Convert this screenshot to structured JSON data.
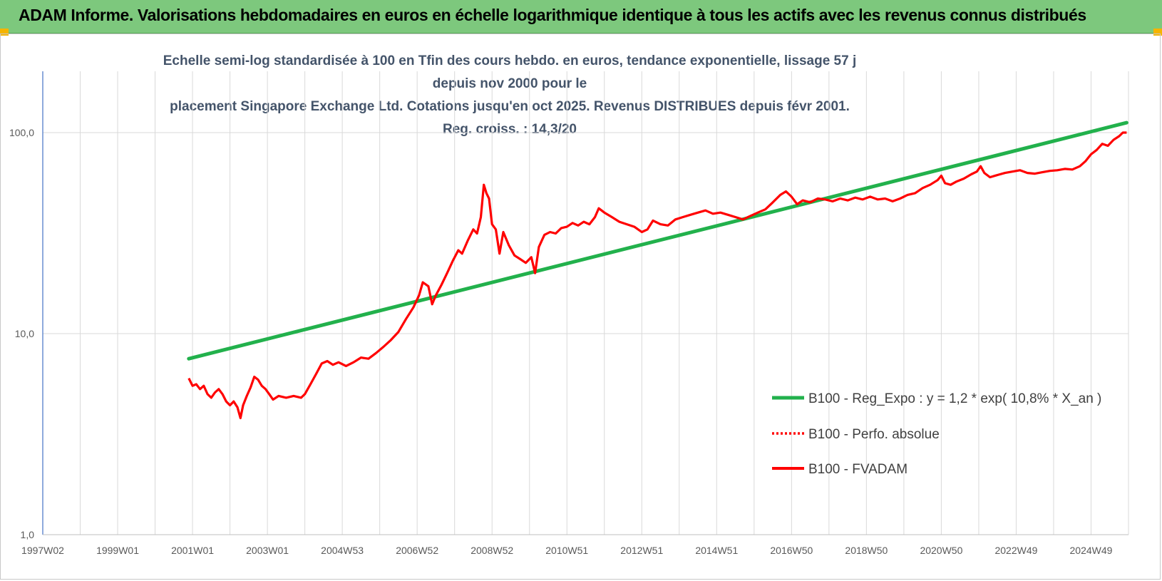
{
  "banner": {
    "title": "ADAM Informe. Valorisations hebdomadaires en euros en échelle logarithmique identique à tous les actifs avec les revenus connus distribués"
  },
  "colors": {
    "banner_bg": "#7dc87d",
    "trend": "#22b14c",
    "fvadam": "#ff0000",
    "perfo": "#ff0000",
    "grid": "#d9d9d9",
    "axis": "#4472c4",
    "title": "#44546a"
  },
  "chart_data": {
    "type": "line",
    "title_line1": "Echelle semi-log standardisée à 100 en Tfin des cours hebdo. en euros, tendance exponentielle, lissage 57 j depuis nov 2000 pour le",
    "title_line2": "placement Singapore Exchange Ltd. Cotations jusqu'en oct 2025.  Revenus DISTRIBUES depuis févr 2001. Reg. croiss. : 14,3/20",
    "yscale": "log",
    "ylim": [
      1,
      200
    ],
    "xlim": [
      1997.0,
      2026.0
    ],
    "y_ticks": [
      {
        "value": 1,
        "label": "1,0"
      },
      {
        "value": 10,
        "label": "10,0"
      },
      {
        "value": 100,
        "label": "100,0"
      }
    ],
    "x_ticks": [
      {
        "x": 1997.0,
        "label": "1997W02"
      },
      {
        "x": 1999.0,
        "label": "1999W01"
      },
      {
        "x": 2001.0,
        "label": "2001W01"
      },
      {
        "x": 2003.0,
        "label": "2003W01"
      },
      {
        "x": 2005.0,
        "label": "2004W53"
      },
      {
        "x": 2007.0,
        "label": "2006W52"
      },
      {
        "x": 2009.0,
        "label": "2008W52"
      },
      {
        "x": 2011.0,
        "label": "2010W51"
      },
      {
        "x": 2013.0,
        "label": "2012W51"
      },
      {
        "x": 2015.0,
        "label": "2014W51"
      },
      {
        "x": 2017.0,
        "label": "2016W50"
      },
      {
        "x": 2019.0,
        "label": "2018W50"
      },
      {
        "x": 2021.0,
        "label": "2020W50"
      },
      {
        "x": 2023.0,
        "label": "2022W49"
      },
      {
        "x": 2025.0,
        "label": "2024W49"
      }
    ],
    "grid": "vertical",
    "legend_position": "right-middle",
    "legend": [
      {
        "name": "B100 - Reg_Expo : y = 1,2 * exp( 10,8% *  X_an )",
        "style": "solid-green"
      },
      {
        "name": "B100 - Perfo. absolue",
        "style": "dotted-red"
      },
      {
        "name": "B100 - FVADAM",
        "style": "solid-red"
      }
    ],
    "series": [
      {
        "name": "B100 - Reg_Expo : y = 1,2 * exp( 10,8% *  X_an )",
        "points": [
          [
            2000.9,
            7.5
          ],
          [
            2025.95,
            112
          ]
        ]
      },
      {
        "name": "B100 - FVADAM",
        "points": [
          [
            2000.9,
            6.0
          ],
          [
            2001.0,
            5.5
          ],
          [
            2001.1,
            5.6
          ],
          [
            2001.2,
            5.3
          ],
          [
            2001.3,
            5.5
          ],
          [
            2001.4,
            5.0
          ],
          [
            2001.5,
            4.8
          ],
          [
            2001.6,
            5.1
          ],
          [
            2001.7,
            5.3
          ],
          [
            2001.8,
            5.0
          ],
          [
            2001.9,
            4.6
          ],
          [
            2002.0,
            4.4
          ],
          [
            2002.1,
            4.6
          ],
          [
            2002.2,
            4.3
          ],
          [
            2002.28,
            3.8
          ],
          [
            2002.35,
            4.4
          ],
          [
            2002.45,
            4.9
          ],
          [
            2002.55,
            5.4
          ],
          [
            2002.65,
            6.1
          ],
          [
            2002.75,
            5.9
          ],
          [
            2002.85,
            5.5
          ],
          [
            2002.95,
            5.3
          ],
          [
            2003.05,
            5.0
          ],
          [
            2003.15,
            4.7
          ],
          [
            2003.3,
            4.9
          ],
          [
            2003.5,
            4.8
          ],
          [
            2003.7,
            4.9
          ],
          [
            2003.9,
            4.8
          ],
          [
            2004.0,
            5.0
          ],
          [
            2004.15,
            5.6
          ],
          [
            2004.3,
            6.3
          ],
          [
            2004.45,
            7.1
          ],
          [
            2004.6,
            7.3
          ],
          [
            2004.75,
            7.0
          ],
          [
            2004.9,
            7.2
          ],
          [
            2005.1,
            6.9
          ],
          [
            2005.3,
            7.2
          ],
          [
            2005.5,
            7.6
          ],
          [
            2005.7,
            7.5
          ],
          [
            2005.9,
            8.0
          ],
          [
            2006.1,
            8.6
          ],
          [
            2006.3,
            9.3
          ],
          [
            2006.5,
            10.2
          ],
          [
            2006.7,
            11.8
          ],
          [
            2006.9,
            13.5
          ],
          [
            2007.05,
            15.5
          ],
          [
            2007.15,
            18.0
          ],
          [
            2007.3,
            17.2
          ],
          [
            2007.4,
            14.0
          ],
          [
            2007.5,
            15.5
          ],
          [
            2007.65,
            17.5
          ],
          [
            2007.8,
            20.0
          ],
          [
            2007.95,
            23.0
          ],
          [
            2008.1,
            26.0
          ],
          [
            2008.2,
            25.0
          ],
          [
            2008.35,
            29.0
          ],
          [
            2008.5,
            33.0
          ],
          [
            2008.6,
            31.5
          ],
          [
            2008.7,
            38.0
          ],
          [
            2008.78,
            55.0
          ],
          [
            2008.85,
            50.0
          ],
          [
            2008.92,
            47.0
          ],
          [
            2009.0,
            35.0
          ],
          [
            2009.1,
            33.0
          ],
          [
            2009.2,
            25.0
          ],
          [
            2009.3,
            32.0
          ],
          [
            2009.45,
            27.5
          ],
          [
            2009.6,
            24.5
          ],
          [
            2009.75,
            23.5
          ],
          [
            2009.9,
            22.5
          ],
          [
            2010.05,
            24.0
          ],
          [
            2010.15,
            20.0
          ],
          [
            2010.25,
            27.0
          ],
          [
            2010.4,
            31.0
          ],
          [
            2010.55,
            32.0
          ],
          [
            2010.7,
            31.5
          ],
          [
            2010.85,
            33.5
          ],
          [
            2011.0,
            34.0
          ],
          [
            2011.15,
            35.5
          ],
          [
            2011.3,
            34.5
          ],
          [
            2011.45,
            36.0
          ],
          [
            2011.6,
            35.0
          ],
          [
            2011.75,
            38.0
          ],
          [
            2011.85,
            42.0
          ],
          [
            2012.0,
            40.0
          ],
          [
            2012.2,
            38.0
          ],
          [
            2012.4,
            36.0
          ],
          [
            2012.6,
            35.0
          ],
          [
            2012.8,
            34.0
          ],
          [
            2013.0,
            32.0
          ],
          [
            2013.15,
            33.0
          ],
          [
            2013.3,
            36.5
          ],
          [
            2013.5,
            35.0
          ],
          [
            2013.7,
            34.5
          ],
          [
            2013.9,
            37.0
          ],
          [
            2014.1,
            38.0
          ],
          [
            2014.3,
            39.0
          ],
          [
            2014.5,
            40.0
          ],
          [
            2014.7,
            41.0
          ],
          [
            2014.9,
            39.5
          ],
          [
            2015.1,
            40.0
          ],
          [
            2015.3,
            39.0
          ],
          [
            2015.5,
            38.0
          ],
          [
            2015.7,
            37.0
          ],
          [
            2015.9,
            38.5
          ],
          [
            2016.1,
            40.0
          ],
          [
            2016.3,
            41.5
          ],
          [
            2016.5,
            45.0
          ],
          [
            2016.7,
            49.0
          ],
          [
            2016.85,
            51.0
          ],
          [
            2017.0,
            48.0
          ],
          [
            2017.15,
            44.0
          ],
          [
            2017.3,
            46.0
          ],
          [
            2017.5,
            45.0
          ],
          [
            2017.7,
            47.0
          ],
          [
            2017.9,
            46.5
          ],
          [
            2018.1,
            45.5
          ],
          [
            2018.3,
            47.0
          ],
          [
            2018.5,
            46.0
          ],
          [
            2018.7,
            47.5
          ],
          [
            2018.9,
            46.5
          ],
          [
            2019.1,
            48.0
          ],
          [
            2019.3,
            46.5
          ],
          [
            2019.5,
            47.0
          ],
          [
            2019.7,
            45.5
          ],
          [
            2019.9,
            47.0
          ],
          [
            2020.1,
            49.0
          ],
          [
            2020.3,
            50.0
          ],
          [
            2020.5,
            53.0
          ],
          [
            2020.7,
            55.0
          ],
          [
            2020.9,
            58.0
          ],
          [
            2021.0,
            61.0
          ],
          [
            2021.1,
            56.0
          ],
          [
            2021.25,
            55.0
          ],
          [
            2021.4,
            57.0
          ],
          [
            2021.6,
            59.0
          ],
          [
            2021.8,
            62.0
          ],
          [
            2021.95,
            64.0
          ],
          [
            2022.05,
            68.0
          ],
          [
            2022.15,
            63.0
          ],
          [
            2022.3,
            60.0
          ],
          [
            2022.5,
            61.5
          ],
          [
            2022.7,
            63.0
          ],
          [
            2022.9,
            64.0
          ],
          [
            2023.1,
            65.0
          ],
          [
            2023.3,
            63.0
          ],
          [
            2023.5,
            62.5
          ],
          [
            2023.7,
            63.5
          ],
          [
            2023.9,
            64.5
          ],
          [
            2024.1,
            65.0
          ],
          [
            2024.3,
            66.0
          ],
          [
            2024.5,
            65.5
          ],
          [
            2024.7,
            68.0
          ],
          [
            2024.85,
            72.0
          ],
          [
            2025.0,
            78.0
          ],
          [
            2025.15,
            82.0
          ],
          [
            2025.3,
            88.0
          ],
          [
            2025.45,
            86.0
          ],
          [
            2025.6,
            92.0
          ],
          [
            2025.75,
            96.0
          ],
          [
            2025.85,
            100.0
          ],
          [
            2025.95,
            100.0
          ]
        ]
      }
    ]
  }
}
